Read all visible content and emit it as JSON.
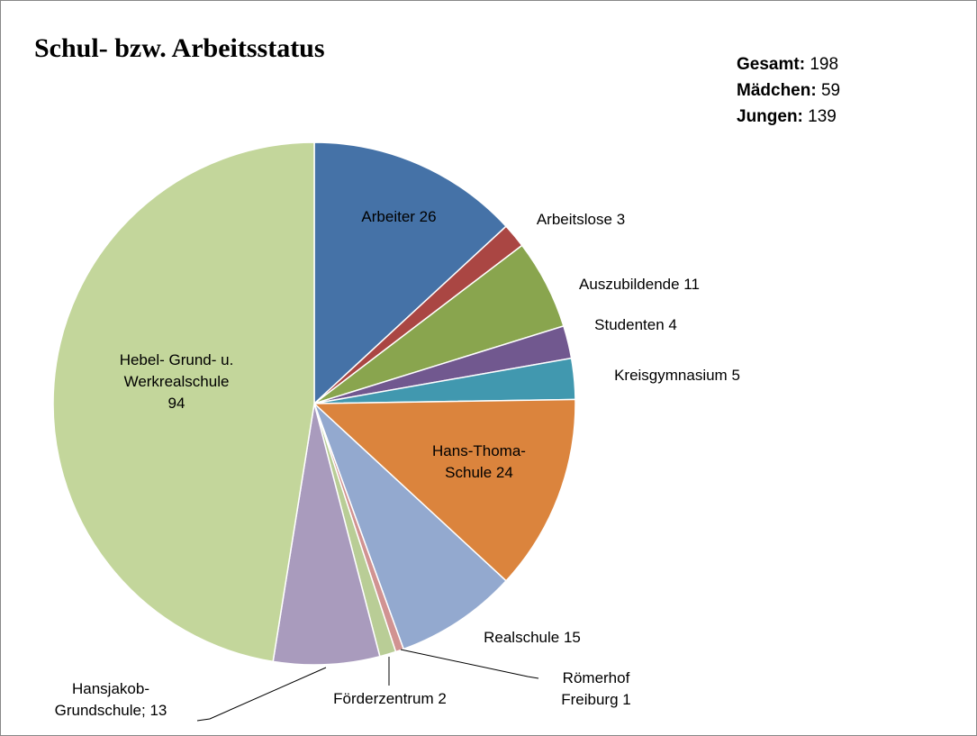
{
  "chart_data": {
    "type": "pie",
    "title": "Schul- bzw. Arbeitsstatus",
    "totals": [
      {
        "label": "Gesamt:",
        "value": 198
      },
      {
        "label": "Mädchen:",
        "value": 59
      },
      {
        "label": "Jungen:",
        "value": 139
      }
    ],
    "categories": [
      "Arbeiter",
      "Arbeitslose",
      "Auszubildende",
      "Studenten",
      "Kreisgymnasium",
      "Hans-Thoma-Schule",
      "Realschule",
      "Römerhof Freiburg",
      "Förderzentrum",
      "Hansjakob-Grundschule;",
      "Hebel- Grund- u. Werkrealschule"
    ],
    "values": [
      26,
      3,
      11,
      4,
      5,
      24,
      15,
      1,
      2,
      13,
      94
    ],
    "colors": [
      "#4572a7",
      "#aa4643",
      "#89a54e",
      "#71588f",
      "#4198af",
      "#db843d",
      "#93a9cf",
      "#d19392",
      "#b9cd96",
      "#a99bbd",
      "#c3d69b"
    ]
  }
}
